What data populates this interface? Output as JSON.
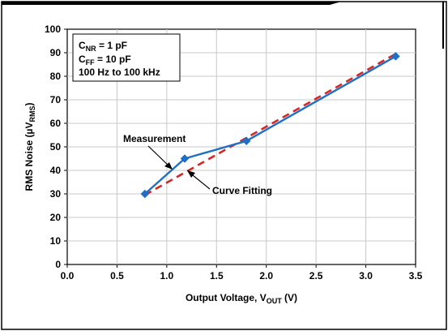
{
  "chart_data": {
    "type": "line",
    "xlabel": {
      "main": "Output Voltage, V",
      "sub": "OUT",
      "unit": " (V)"
    },
    "ylabel": {
      "main": "RMS Noise (µV",
      "sub": "RMS",
      "close": ")"
    },
    "xlim": [
      0.0,
      3.5
    ],
    "ylim": [
      0,
      100
    ],
    "xticks": [
      "0.0",
      "0.5",
      "1.0",
      "1.5",
      "2.0",
      "2.5",
      "3.0",
      "3.5"
    ],
    "yticks": [
      "0",
      "10",
      "20",
      "30",
      "40",
      "50",
      "60",
      "70",
      "80",
      "90",
      "100"
    ],
    "grid": true,
    "series": [
      {
        "name": "Measurement",
        "color": "#1f6fc4",
        "style": "solid",
        "marker": "diamond",
        "x": [
          0.78,
          1.18,
          1.8,
          3.3
        ],
        "y": [
          30,
          45,
          52.5,
          88.5
        ]
      },
      {
        "name": "Curve Fitting",
        "color": "#d62728",
        "style": "dashed",
        "x": [
          0.78,
          3.3
        ],
        "y": [
          29.5,
          89.5
        ]
      }
    ],
    "legend_box": {
      "position": "top-left",
      "lines": [
        {
          "main": "C",
          "sub": "NR",
          "rest": " = 1 pF"
        },
        {
          "main": "C",
          "sub": "FF",
          "rest": " = 10 pF"
        },
        {
          "main": "100 Hz to 100 kHz",
          "sub": "",
          "rest": ""
        }
      ]
    },
    "annotations": [
      {
        "text": "Measurement",
        "target": "measurement"
      },
      {
        "text": "Curve Fitting",
        "target": "curve-fitting"
      }
    ]
  }
}
